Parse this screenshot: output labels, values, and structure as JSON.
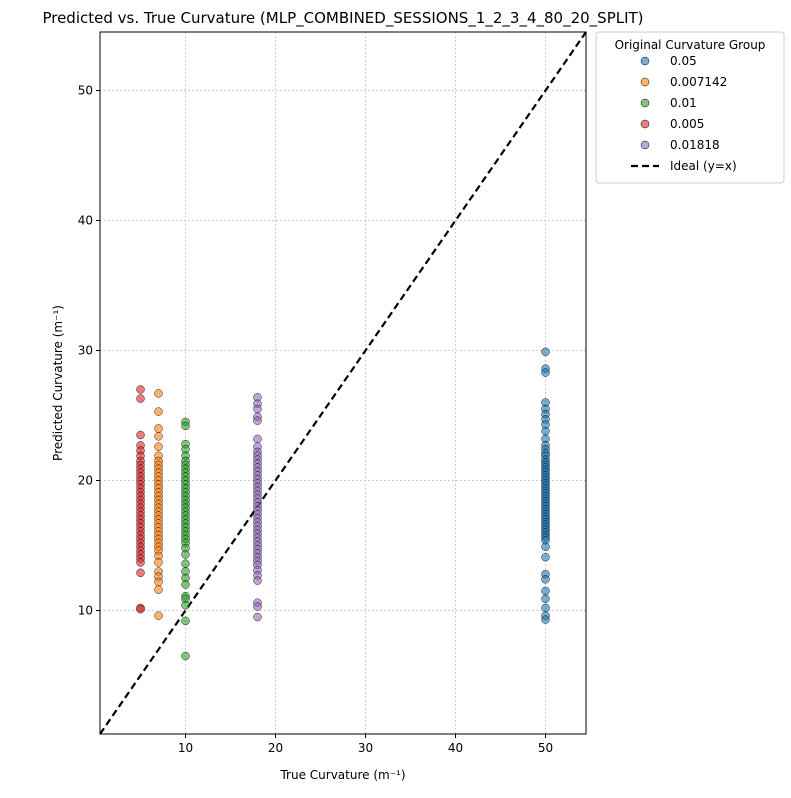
{
  "chart_data": {
    "type": "scatter",
    "title": "Predicted vs. True Curvature (MLP_COMBINED_SESSIONS_1_2_3_4_80_20_SPLIT)",
    "xlabel": "True Curvature (m⁻¹)",
    "ylabel": "Predicted Curvature (m⁻¹)",
    "xlim": [
      0.5,
      54.5
    ],
    "ylim": [
      0.5,
      54.5
    ],
    "xticks": [
      10,
      20,
      30,
      40,
      50
    ],
    "yticks": [
      10,
      20,
      30,
      40,
      50
    ],
    "grid": true,
    "legend": {
      "title": "Original Curvature Group",
      "placement": "outside-top-right"
    },
    "series": [
      {
        "name": "0.05",
        "color": "#1f77b4",
        "x_value": 50,
        "y": [
          29.9,
          28.6,
          28.3,
          26.0,
          25.5,
          25.1,
          24.7,
          24.3,
          23.8,
          23.2,
          22.7,
          22.4,
          22.1,
          21.9,
          21.6,
          21.4,
          21.2,
          21.0,
          20.8,
          20.6,
          20.4,
          20.2,
          20.0,
          19.8,
          19.6,
          19.4,
          19.2,
          19.0,
          18.8,
          18.6,
          18.4,
          18.2,
          18.0,
          17.8,
          17.6,
          17.4,
          17.2,
          17.0,
          16.8,
          16.6,
          16.4,
          16.2,
          16.0,
          15.8,
          15.6,
          15.4,
          14.9,
          14.1,
          12.8,
          12.4,
          11.5,
          10.9,
          10.2,
          9.6,
          9.3
        ]
      },
      {
        "name": "0.007142",
        "color": "#ff7f0e",
        "x_value": 7,
        "y": [
          26.7,
          25.3,
          24.0,
          23.4,
          22.6,
          21.9,
          21.5,
          21.2,
          20.9,
          20.6,
          20.3,
          20.0,
          19.7,
          19.4,
          19.1,
          18.8,
          18.5,
          18.2,
          17.9,
          17.6,
          17.3,
          17.0,
          16.7,
          16.4,
          16.1,
          15.8,
          15.5,
          15.2,
          14.9,
          14.6,
          14.2,
          13.7,
          13.0,
          12.6,
          12.2,
          11.6,
          9.6
        ]
      },
      {
        "name": "0.01",
        "color": "#2ca02c",
        "x_value": 10,
        "y": [
          24.5,
          24.2,
          22.8,
          22.4,
          21.9,
          21.5,
          21.2,
          20.9,
          20.6,
          20.3,
          20.0,
          19.7,
          19.4,
          19.1,
          18.8,
          18.5,
          18.2,
          17.9,
          17.6,
          17.3,
          17.0,
          16.7,
          16.4,
          16.1,
          15.8,
          15.5,
          15.2,
          14.8,
          14.3,
          13.6,
          13.0,
          12.5,
          12.0,
          11.1,
          10.9,
          10.4,
          9.2,
          6.5
        ]
      },
      {
        "name": "0.005",
        "color": "#d62728",
        "x_value": 5,
        "y": [
          27.0,
          26.3,
          23.5,
          22.7,
          22.3,
          21.9,
          21.5,
          21.2,
          20.9,
          20.6,
          20.3,
          20.0,
          19.7,
          19.4,
          19.1,
          18.8,
          18.5,
          18.2,
          17.9,
          17.6,
          17.3,
          17.0,
          16.7,
          16.4,
          16.1,
          15.8,
          15.5,
          15.2,
          14.9,
          14.6,
          14.3,
          14.0,
          13.7,
          12.9,
          10.2,
          10.1
        ]
      },
      {
        "name": "0.01818",
        "color": "#9467bd",
        "x_value": 18,
        "y": [
          26.4,
          25.9,
          25.5,
          24.9,
          24.6,
          23.2,
          22.6,
          22.2,
          21.9,
          21.6,
          21.3,
          21.0,
          20.7,
          20.4,
          20.1,
          19.8,
          19.5,
          19.2,
          18.9,
          18.6,
          18.3,
          18.0,
          17.7,
          17.4,
          17.1,
          16.8,
          16.5,
          16.2,
          15.9,
          15.6,
          15.3,
          15.0,
          14.7,
          14.4,
          14.1,
          13.8,
          13.5,
          13.1,
          12.7,
          12.3,
          10.6,
          10.3,
          9.5
        ]
      },
      {
        "name": "Ideal (y=x)",
        "type": "line",
        "style": "dashed",
        "color": "#000000",
        "x": [
          0.5,
          54.5
        ],
        "y": [
          0.5,
          54.5
        ]
      }
    ]
  }
}
